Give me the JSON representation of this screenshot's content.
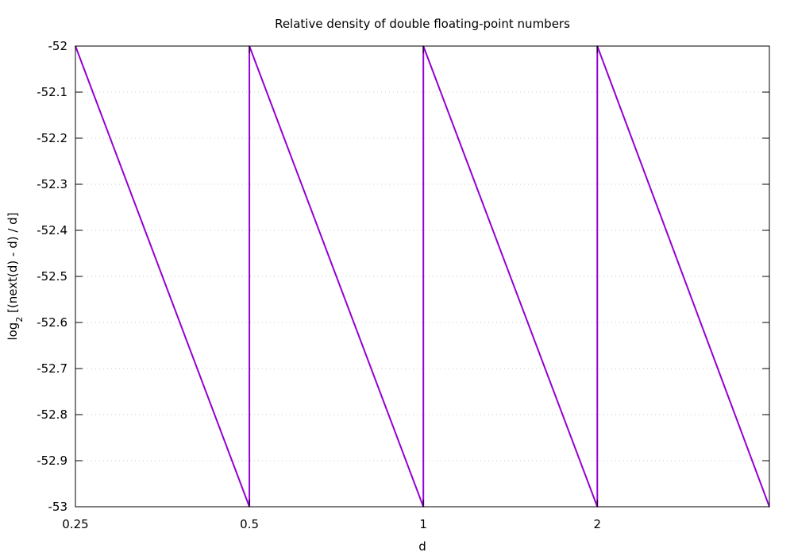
{
  "chart_data": {
    "type": "line",
    "title": "Relative density of double floating-point numbers",
    "xlabel": "d",
    "ylabel": {
      "prefix": "log",
      "subscript": "2",
      "suffix": " [(next(d) - d) / d]"
    },
    "x_scale": "log2",
    "xlim": [
      0.25,
      3.97
    ],
    "ylim": [
      -53,
      -52
    ],
    "x_ticks": [
      {
        "value": 0.25,
        "label": "0.25"
      },
      {
        "value": 0.5,
        "label": "0.5"
      },
      {
        "value": 1,
        "label": "1"
      },
      {
        "value": 2,
        "label": "2"
      }
    ],
    "y_ticks": [
      {
        "value": -52,
        "label": "-52"
      },
      {
        "value": -52.1,
        "label": "-52.1"
      },
      {
        "value": -52.2,
        "label": "-52.2"
      },
      {
        "value": -52.3,
        "label": "-52.3"
      },
      {
        "value": -52.4,
        "label": "-52.4"
      },
      {
        "value": -52.5,
        "label": "-52.5"
      },
      {
        "value": -52.6,
        "label": "-52.6"
      },
      {
        "value": -52.7,
        "label": "-52.7"
      },
      {
        "value": -52.8,
        "label": "-52.8"
      },
      {
        "value": -52.9,
        "label": "-52.9"
      },
      {
        "value": -53,
        "label": "-53"
      }
    ],
    "grid": {
      "horizontal": true,
      "vertical": false,
      "style": "dotted"
    },
    "legend": "none",
    "series": [
      {
        "color": "#9400d3",
        "points": [
          {
            "x": 0.25,
            "y": -52
          },
          {
            "x": 0.5,
            "y": -53
          },
          {
            "x": 0.5,
            "y": -52
          },
          {
            "x": 1,
            "y": -53
          },
          {
            "x": 1,
            "y": -52
          },
          {
            "x": 2,
            "y": -53
          },
          {
            "x": 2,
            "y": -52
          },
          {
            "x": 3.97,
            "y": -53
          }
        ]
      }
    ]
  }
}
